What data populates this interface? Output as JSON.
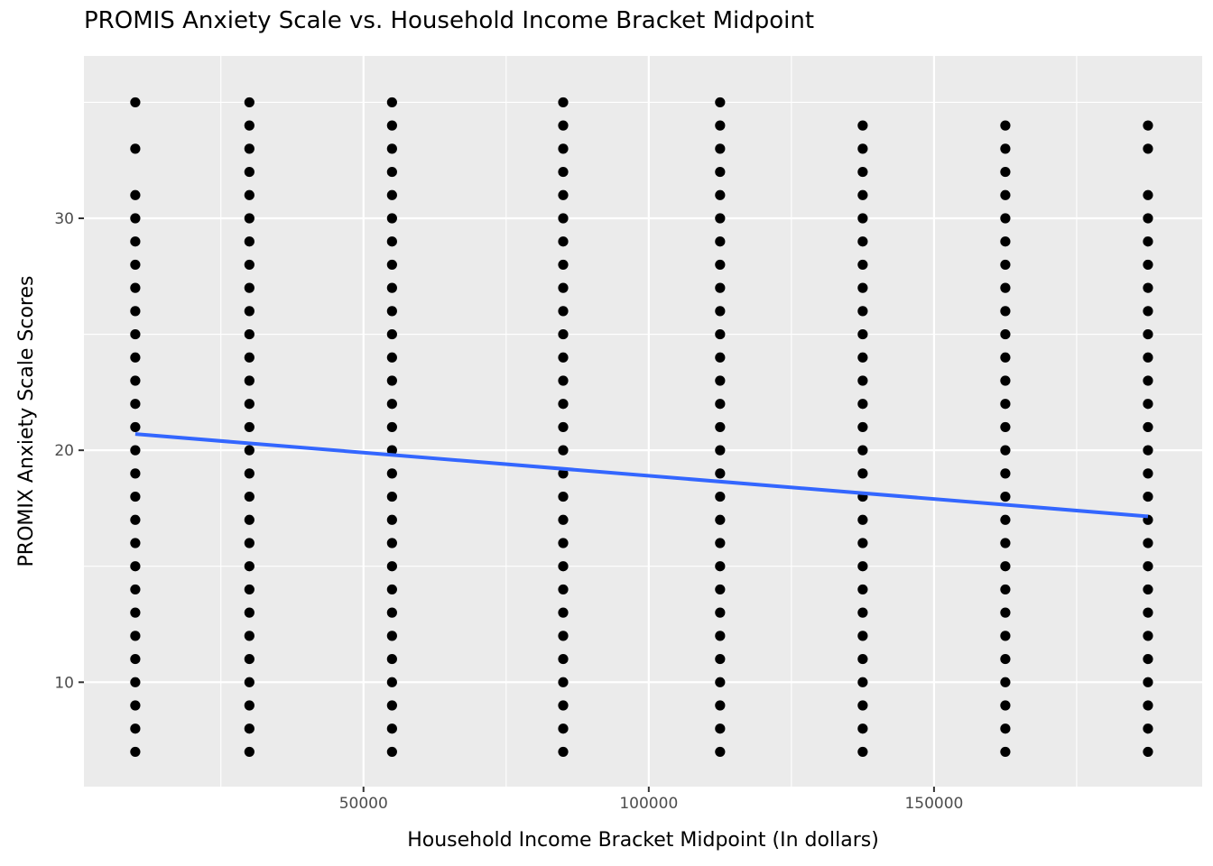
{
  "chart_data": {
    "type": "scatter",
    "title": "PROMIS Anxiety Scale vs. Household Income Bracket Midpoint",
    "xlabel": "Household Income Bracket Midpoint (In dollars)",
    "ylabel": "PROMIX Anxiety Scale Scores",
    "xlim": [
      1000,
      197000
    ],
    "ylim": [
      5.5,
      37
    ],
    "x_ticks": [
      50000,
      100000,
      150000
    ],
    "y_ticks": [
      10,
      20,
      30
    ],
    "grid": true,
    "background": "#ebebeb",
    "point_color": "#000000",
    "groups": [
      {
        "x": 10000,
        "y": [
          7,
          8,
          9,
          10,
          11,
          12,
          13,
          14,
          15,
          16,
          17,
          18,
          19,
          20,
          21,
          22,
          23,
          24,
          25,
          26,
          27,
          28,
          29,
          30,
          31,
          33,
          35
        ]
      },
      {
        "x": 30000,
        "y": [
          7,
          8,
          9,
          10,
          11,
          12,
          13,
          14,
          15,
          16,
          17,
          18,
          19,
          20,
          21,
          22,
          23,
          24,
          25,
          26,
          27,
          28,
          29,
          30,
          31,
          32,
          33,
          34,
          35
        ]
      },
      {
        "x": 55000,
        "y": [
          7,
          8,
          9,
          10,
          11,
          12,
          13,
          14,
          15,
          16,
          17,
          18,
          19,
          20,
          21,
          22,
          23,
          24,
          25,
          26,
          27,
          28,
          29,
          30,
          31,
          32,
          33,
          34,
          35
        ]
      },
      {
        "x": 85000,
        "y": [
          7,
          8,
          9,
          10,
          11,
          12,
          13,
          14,
          15,
          16,
          17,
          18,
          19,
          20,
          21,
          22,
          23,
          24,
          25,
          26,
          27,
          28,
          29,
          30,
          31,
          32,
          33,
          34,
          35
        ]
      },
      {
        "x": 112500,
        "y": [
          7,
          8,
          9,
          10,
          11,
          12,
          13,
          14,
          15,
          16,
          17,
          18,
          19,
          20,
          21,
          22,
          23,
          24,
          25,
          26,
          27,
          28,
          29,
          30,
          31,
          32,
          33,
          34,
          35
        ]
      },
      {
        "x": 137500,
        "y": [
          7,
          8,
          9,
          10,
          11,
          12,
          13,
          14,
          15,
          16,
          17,
          18,
          19,
          20,
          21,
          22,
          23,
          24,
          25,
          26,
          27,
          28,
          29,
          30,
          31,
          32,
          33,
          34
        ]
      },
      {
        "x": 162500,
        "y": [
          7,
          8,
          9,
          10,
          11,
          12,
          13,
          14,
          15,
          16,
          17,
          18,
          19,
          20,
          21,
          22,
          23,
          24,
          25,
          26,
          27,
          28,
          29,
          30,
          31,
          32,
          33,
          34
        ]
      },
      {
        "x": 187500,
        "y": [
          7,
          8,
          9,
          10,
          11,
          12,
          13,
          14,
          15,
          16,
          17,
          18,
          19,
          20,
          21,
          22,
          23,
          24,
          25,
          26,
          27,
          28,
          29,
          30,
          31,
          33,
          34
        ]
      }
    ],
    "trend_line": {
      "color": "#3366ff",
      "x": [
        10000,
        187500
      ],
      "y": [
        20.7,
        17.15
      ]
    }
  }
}
